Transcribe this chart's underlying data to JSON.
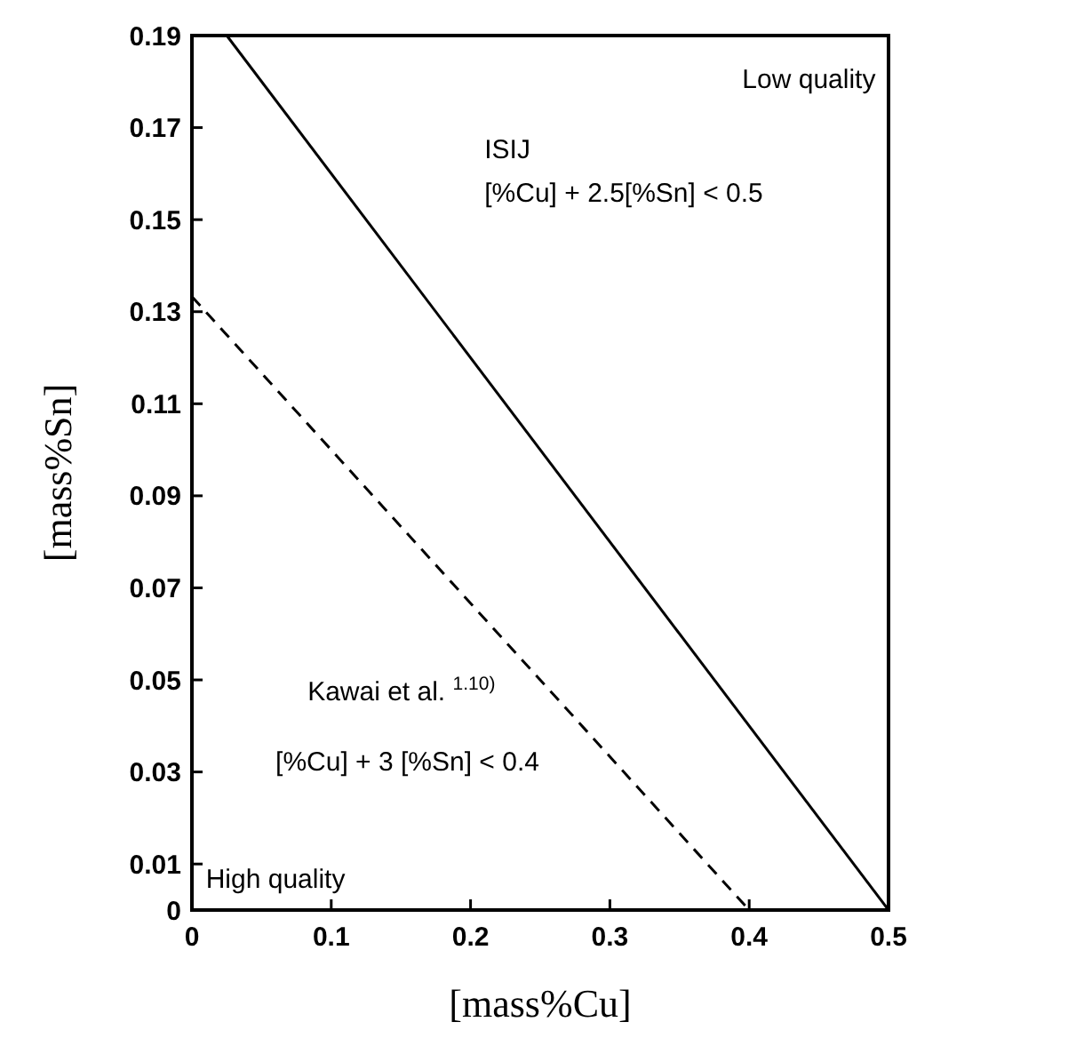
{
  "chart_data": {
    "type": "line",
    "xlabel": "[mass%Cu]",
    "ylabel": "[mass%Sn]",
    "xlim": [
      0,
      0.5
    ],
    "ylim": [
      0,
      0.19
    ],
    "xticks": [
      0,
      0.1,
      0.2,
      0.3,
      0.4,
      0.5
    ],
    "yticks": [
      0,
      0.01,
      0.03,
      0.05,
      0.07,
      0.09,
      0.11,
      0.13,
      0.15,
      0.17,
      0.19
    ],
    "grid": false,
    "marker": "none",
    "series": [
      {
        "color": "#000000",
        "line_style": "solid",
        "x": [
          0.025,
          0.5
        ],
        "values": [
          0.19,
          0
        ]
      },
      {
        "color": "#000000",
        "line_style": "dashed",
        "x": [
          0,
          0.4
        ],
        "values": [
          0.1333,
          0
        ]
      }
    ],
    "annotations": [
      "Low quality",
      "ISIJ",
      "[%Cu] + 2.5[%Sn] < 0.5",
      "Kawai et al. $^{1.10)}$",
      "[%Cu] + 3 [%Sn] < 0.4",
      "High quality"
    ]
  }
}
